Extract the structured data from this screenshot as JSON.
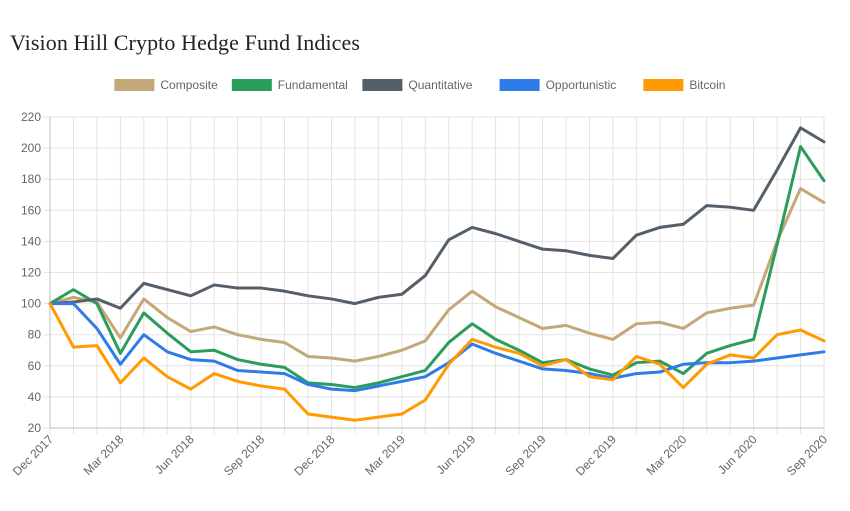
{
  "chart_data": {
    "type": "line",
    "title": "Vision Hill Crypto Hedge Fund Indices",
    "x": [
      "Dec 2017",
      "Jan 2018",
      "Feb 2018",
      "Mar 2018",
      "Apr 2018",
      "May 2018",
      "Jun 2018",
      "Jul 2018",
      "Aug 2018",
      "Sep 2018",
      "Oct 2018",
      "Nov 2018",
      "Dec 2018",
      "Jan 2019",
      "Feb 2019",
      "Mar 2019",
      "Apr 2019",
      "May 2019",
      "Jun 2019",
      "Jul 2019",
      "Aug 2019",
      "Sep 2019",
      "Oct 2019",
      "Nov 2019",
      "Dec 2019",
      "Jan 2020",
      "Feb 2020",
      "Mar 2020",
      "Apr 2020",
      "May 2020",
      "Jun 2020",
      "Jul 2020",
      "Aug 2020",
      "Sep 2020"
    ],
    "xtick_labels": [
      "Dec 2017",
      "Mar 2018",
      "Jun 2018",
      "Sep 2018",
      "Dec 2018",
      "Mar 2019",
      "Jun 2019",
      "Sep 2019",
      "Dec 2019",
      "Mar 2020",
      "Jun 2020",
      "Sep 2020"
    ],
    "yticks": [
      20,
      40,
      60,
      80,
      100,
      120,
      140,
      160,
      180,
      200,
      220
    ],
    "ylim": [
      20,
      220
    ],
    "grid": true,
    "legend_position": "top",
    "series": [
      {
        "name": "Composite",
        "color": "#c4a877",
        "values": [
          100,
          104,
          101,
          78,
          103,
          91,
          82,
          85,
          80,
          77,
          75,
          66,
          65,
          63,
          66,
          70,
          76,
          96,
          108,
          98,
          91,
          84,
          86,
          81,
          77,
          87,
          88,
          84,
          94,
          97,
          99,
          140,
          174,
          165
        ]
      },
      {
        "name": "Fundamental",
        "color": "#2a9d5c",
        "values": [
          100,
          109,
          100,
          68,
          94,
          81,
          69,
          70,
          64,
          61,
          59,
          49,
          48,
          46,
          49,
          53,
          57,
          75,
          87,
          77,
          70,
          62,
          64,
          58,
          54,
          62,
          63,
          55,
          68,
          73,
          77,
          138,
          201,
          179
        ]
      },
      {
        "name": "Quantitative",
        "color": "#555f69",
        "values": [
          100,
          101,
          103,
          97,
          113,
          109,
          105,
          112,
          110,
          110,
          108,
          105,
          103,
          100,
          104,
          106,
          118,
          141,
          149,
          145,
          140,
          135,
          134,
          131,
          129,
          144,
          149,
          151,
          163,
          162,
          160,
          186,
          213,
          204
        ]
      },
      {
        "name": "Opportunistic",
        "color": "#2f7bea",
        "values": [
          100,
          100,
          84,
          61,
          80,
          69,
          64,
          63,
          57,
          56,
          55,
          48,
          45,
          44,
          47,
          50,
          53,
          62,
          74,
          68,
          63,
          58,
          57,
          55,
          52,
          55,
          56,
          61,
          62,
          62,
          63,
          65,
          67,
          69
        ]
      },
      {
        "name": "Bitcoin",
        "color": "#ff9a00",
        "values": [
          100,
          72,
          73,
          49,
          65,
          53,
          45,
          55,
          50,
          47,
          45,
          29,
          27,
          25,
          27,
          29,
          38,
          61,
          77,
          72,
          68,
          60,
          64,
          53,
          51,
          66,
          61,
          46,
          61,
          67,
          65,
          80,
          83,
          76
        ]
      }
    ]
  }
}
